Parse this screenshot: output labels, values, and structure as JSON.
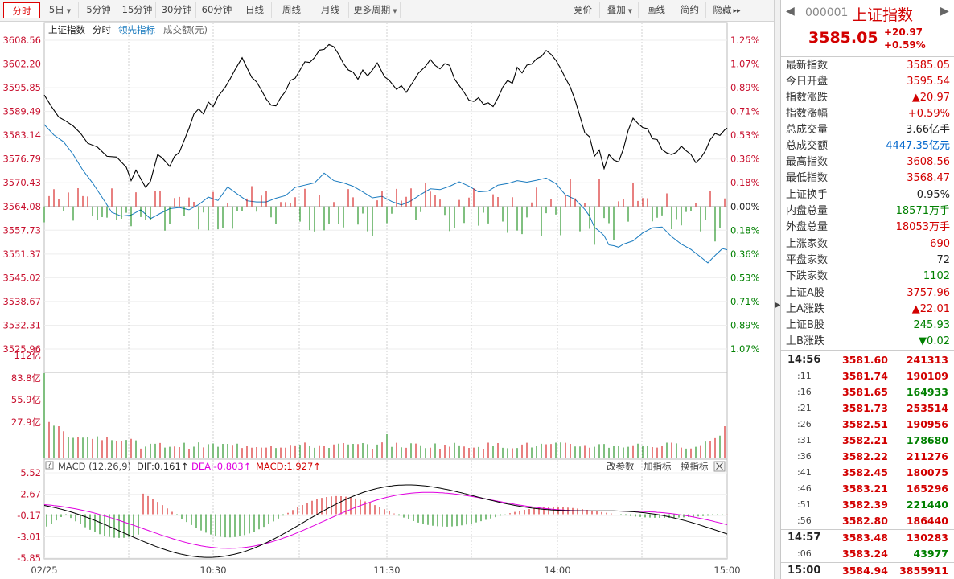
{
  "toolbar": {
    "left": [
      {
        "label": "分时",
        "dropdown": false,
        "active": true
      },
      {
        "label": "5日",
        "dropdown": true
      },
      {
        "label": "5分钟",
        "dropdown": false
      },
      {
        "label": "15分钟",
        "dropdown": false
      },
      {
        "label": "30分钟",
        "dropdown": false
      },
      {
        "label": "60分钟",
        "dropdown": false
      },
      {
        "label": "日线",
        "dropdown": false
      },
      {
        "label": "周线",
        "dropdown": false
      },
      {
        "label": "月线",
        "dropdown": false
      },
      {
        "label": "更多周期",
        "dropdown": true
      }
    ],
    "right": [
      {
        "label": "竞价",
        "dropdown": false
      },
      {
        "label": "叠加",
        "dropdown": true
      },
      {
        "label": "画线",
        "dropdown": false
      },
      {
        "label": "简约",
        "dropdown": false
      },
      {
        "label": "隐藏",
        "dropdown": false,
        "suffix": "▸▸"
      }
    ]
  },
  "legend": {
    "name": "上证指数",
    "mode": "分时",
    "leading": "领先指标",
    "amount": "成交额(元)"
  },
  "price_axis": [
    "3608.56",
    "3602.20",
    "3595.85",
    "3589.49",
    "3583.14",
    "3576.79",
    "3570.43",
    "3564.08",
    "3557.73",
    "3551.37",
    "3545.02",
    "3538.67",
    "3532.31",
    "3525.96"
  ],
  "pct_axis": [
    "1.25%",
    "1.07%",
    "0.89%",
    "0.71%",
    "0.53%",
    "0.36%",
    "0.18%",
    "0.00%",
    "0.18%",
    "0.36%",
    "0.53%",
    "0.71%",
    "0.89%",
    "1.07%"
  ],
  "volume_axis": [
    "112亿",
    "83.8亿",
    "55.9亿",
    "27.9亿"
  ],
  "macd": {
    "title": "MACD (12,26,9)",
    "dif": "DIF:0.161↑",
    "dea": "DEA:-0.803↑",
    "macd": "MACD:1.927↑",
    "btn_params": "改参数",
    "btn_add": "加指标",
    "btn_swap": "换指标",
    "close": "⨉"
  },
  "macd_axis": [
    "5.52",
    "2.67",
    "-0.17",
    "-3.01",
    "-5.85"
  ],
  "time_axis": [
    "02/25",
    "10:30",
    "11:30",
    "14:00",
    "15:00"
  ],
  "colors": {
    "up": "#d20000",
    "down": "#008000",
    "price_line": "#000000",
    "avg_line": "#1a7bbf",
    "dea_line": "#e000e0",
    "macd_label": "#d20000"
  },
  "chart_data": {
    "type": "line",
    "title": "上证指数 分时",
    "prev_close": 3564.08,
    "price_range": [
      3525.96,
      3608.56
    ],
    "price_series": [
      [
        0,
        3593.9
      ],
      [
        3,
        3590.8
      ],
      [
        6,
        3588.0
      ],
      [
        9,
        3586.9
      ],
      [
        12,
        3585.6
      ],
      [
        15,
        3583.7
      ],
      [
        18,
        3581.0
      ],
      [
        22,
        3580.0
      ],
      [
        26,
        3577.5
      ],
      [
        30,
        3577.3
      ],
      [
        34,
        3574.6
      ],
      [
        36,
        3571.0
      ],
      [
        38,
        3573.8
      ],
      [
        40,
        3571.5
      ],
      [
        42,
        3569.2
      ],
      [
        44,
        3570.8
      ],
      [
        47,
        3578.0
      ],
      [
        49,
        3577.0
      ],
      [
        52,
        3574.8
      ],
      [
        54,
        3577.5
      ],
      [
        56,
        3578.6
      ],
      [
        58,
        3581.8
      ],
      [
        60,
        3585.0
      ],
      [
        62,
        3588.8
      ],
      [
        64,
        3590.2
      ],
      [
        66,
        3588.8
      ],
      [
        68,
        3592.0
      ],
      [
        70,
        3590.8
      ],
      [
        72,
        3593.5
      ],
      [
        75,
        3596.0
      ],
      [
        77,
        3598.2
      ],
      [
        79,
        3600.6
      ],
      [
        81,
        3602.8
      ],
      [
        82,
        3603.9
      ],
      [
        84,
        3601.2
      ],
      [
        86,
        3598.6
      ],
      [
        88,
        3597.4
      ],
      [
        90,
        3595.2
      ],
      [
        92,
        3592.8
      ],
      [
        94,
        3591.2
      ],
      [
        96,
        3591.0
      ],
      [
        98,
        3593.2
      ],
      [
        100,
        3594.9
      ],
      [
        102,
        3597.8
      ],
      [
        104,
        3598.4
      ],
      [
        106,
        3600.6
      ],
      [
        108,
        3602.8
      ],
      [
        110,
        3602.6
      ],
      [
        112,
        3603.9
      ],
      [
        114,
        3605.9
      ],
      [
        116,
        3606.1
      ],
      [
        118,
        3607.4
      ],
      [
        120,
        3606.8
      ],
      [
        122,
        3604.8
      ],
      [
        124,
        3602.3
      ],
      [
        126,
        3600.6
      ],
      [
        128,
        3600.0
      ],
      [
        130,
        3598.1
      ],
      [
        132,
        3600.6
      ],
      [
        134,
        3599.0
      ],
      [
        136,
        3600.6
      ],
      [
        138,
        3602.5
      ],
      [
        141,
        3598.8
      ],
      [
        143,
        3597.8
      ],
      [
        146,
        3595.4
      ],
      [
        148,
        3596.4
      ],
      [
        150,
        3594.6
      ],
      [
        153,
        3597.6
      ],
      [
        155,
        3599.7
      ],
      [
        158,
        3601.6
      ],
      [
        160,
        3603.4
      ],
      [
        162,
        3601.8
      ],
      [
        164,
        3600.9
      ],
      [
        166,
        3602.3
      ],
      [
        168,
        3601.8
      ],
      [
        170,
        3598.2
      ],
      [
        172,
        3596.4
      ],
      [
        174,
        3594.6
      ],
      [
        176,
        3592.5
      ],
      [
        178,
        3592.2
      ],
      [
        180,
        3593.2
      ],
      [
        182,
        3591.4
      ],
      [
        184,
        3591.8
      ],
      [
        186,
        3590.8
      ],
      [
        188,
        3593.1
      ],
      [
        190,
        3596.0
      ],
      [
        192,
        3597.8
      ],
      [
        194,
        3597.0
      ],
      [
        196,
        3601.3
      ],
      [
        198,
        3599.8
      ],
      [
        200,
        3601.9
      ],
      [
        202,
        3602.2
      ],
      [
        204,
        3603.6
      ],
      [
        206,
        3604.2
      ],
      [
        208,
        3605.8
      ],
      [
        210,
        3604.8
      ],
      [
        212,
        3603.2
      ],
      [
        214,
        3601.0
      ],
      [
        216,
        3598.4
      ],
      [
        218,
        3596.0
      ],
      [
        220,
        3592.5
      ],
      [
        222,
        3588.2
      ],
      [
        224,
        3583.8
      ],
      [
        226,
        3582.7
      ],
      [
        228,
        3577.5
      ],
      [
        230,
        3579.2
      ],
      [
        232,
        3574.2
      ],
      [
        234,
        3578.0
      ],
      [
        236,
        3576.5
      ],
      [
        238,
        3576.0
      ],
      [
        240,
        3579.5
      ],
      [
        242,
        3584.5
      ],
      [
        244,
        3587.7
      ],
      [
        246,
        3586.3
      ],
      [
        248,
        3585.2
      ],
      [
        250,
        3584.9
      ],
      [
        252,
        3582.2
      ],
      [
        254,
        3582.0
      ],
      [
        256,
        3579.3
      ],
      [
        258,
        3578.4
      ],
      [
        260,
        3578.0
      ],
      [
        262,
        3578.6
      ],
      [
        264,
        3580.2
      ],
      [
        266,
        3579.0
      ],
      [
        268,
        3578.0
      ],
      [
        270,
        3575.8
      ],
      [
        272,
        3577.0
      ],
      [
        274,
        3579.0
      ],
      [
        276,
        3582.0
      ],
      [
        278,
        3583.6
      ],
      [
        280,
        3583.1
      ],
      [
        282,
        3584.6
      ],
      [
        283,
        3585.05
      ]
    ],
    "avg_series": [
      [
        0,
        3586.0
      ],
      [
        4,
        3583.2
      ],
      [
        8,
        3581.4
      ],
      [
        12,
        3578.0
      ],
      [
        16,
        3573.8
      ],
      [
        20,
        3570.4
      ],
      [
        24,
        3566.5
      ],
      [
        28,
        3562.5
      ],
      [
        32,
        3561.5
      ],
      [
        36,
        3561.8
      ],
      [
        40,
        3563.2
      ],
      [
        44,
        3560.8
      ],
      [
        48,
        3562.2
      ],
      [
        52,
        3563.5
      ],
      [
        56,
        3563.8
      ],
      [
        60,
        3563.2
      ],
      [
        64,
        3564.6
      ],
      [
        68,
        3566.6
      ],
      [
        72,
        3565.7
      ],
      [
        76,
        3569.3
      ],
      [
        80,
        3567.4
      ],
      [
        84,
        3565.6
      ],
      [
        88,
        3565.3
      ],
      [
        92,
        3565.3
      ],
      [
        96,
        3566.3
      ],
      [
        100,
        3567.0
      ],
      [
        104,
        3569.2
      ],
      [
        108,
        3569.8
      ],
      [
        112,
        3570.4
      ],
      [
        116,
        3573.0
      ],
      [
        120,
        3571.0
      ],
      [
        124,
        3570.4
      ],
      [
        128,
        3569.5
      ],
      [
        132,
        3568.0
      ],
      [
        136,
        3566.4
      ],
      [
        140,
        3566.8
      ],
      [
        144,
        3565.4
      ],
      [
        148,
        3564.5
      ],
      [
        152,
        3565.6
      ],
      [
        156,
        3567.3
      ],
      [
        160,
        3568.8
      ],
      [
        164,
        3568.6
      ],
      [
        168,
        3569.5
      ],
      [
        172,
        3570.7
      ],
      [
        176,
        3569.5
      ],
      [
        180,
        3568.0
      ],
      [
        184,
        3568.2
      ],
      [
        188,
        3569.8
      ],
      [
        192,
        3570.2
      ],
      [
        196,
        3571.0
      ],
      [
        200,
        3570.6
      ],
      [
        204,
        3571.1
      ],
      [
        208,
        3571.7
      ],
      [
        212,
        3570.2
      ],
      [
        216,
        3567.2
      ],
      [
        220,
        3566.0
      ],
      [
        224,
        3563.3
      ],
      [
        226,
        3561.5
      ],
      [
        228,
        3558.5
      ],
      [
        230,
        3557.5
      ],
      [
        232,
        3556.3
      ],
      [
        234,
        3553.8
      ],
      [
        236,
        3553.6
      ],
      [
        238,
        3553.2
      ],
      [
        240,
        3554.0
      ],
      [
        244,
        3554.9
      ],
      [
        248,
        3557.0
      ],
      [
        252,
        3558.4
      ],
      [
        256,
        3558.6
      ],
      [
        260,
        3556.0
      ],
      [
        264,
        3554.0
      ],
      [
        268,
        3552.6
      ],
      [
        272,
        3550.6
      ],
      [
        275,
        3549.0
      ],
      [
        278,
        3551.0
      ],
      [
        281,
        3552.8
      ],
      [
        283,
        3552.5
      ]
    ],
    "volume_range": [
      0,
      112
    ],
    "macd_range": [
      -5.85,
      5.52
    ]
  },
  "panel": {
    "code": "000001",
    "name": "上证指数",
    "price": "3585.05",
    "change": "+20.97",
    "pct": "+0.59%",
    "nav_prev": "◀",
    "nav_next": "▶",
    "group1": [
      {
        "k": "最新指数",
        "v": "3585.05",
        "c": "red"
      },
      {
        "k": "今日开盘",
        "v": "3595.54",
        "c": "red"
      },
      {
        "k": "指数涨跌",
        "v": "▲20.97",
        "c": "red"
      },
      {
        "k": "指数涨幅",
        "v": "+0.59%",
        "c": "red"
      },
      {
        "k": "总成交量",
        "v": "3.66亿手",
        "c": "black"
      },
      {
        "k": "总成交额",
        "v": "4447.35亿元",
        "c": "blue"
      },
      {
        "k": "最高指数",
        "v": "3608.56",
        "c": "red"
      },
      {
        "k": "最低指数",
        "v": "3568.47",
        "c": "red"
      }
    ],
    "group2": [
      {
        "k": "上证换手",
        "v": "0.95%",
        "c": "black"
      },
      {
        "k": "内盘总量",
        "v": "18571万手",
        "c": "green"
      },
      {
        "k": "外盘总量",
        "v": "18053万手",
        "c": "red"
      }
    ],
    "group3": [
      {
        "k": "上涨家数",
        "v": "690",
        "c": "red"
      },
      {
        "k": "平盘家数",
        "v": "72",
        "c": "black"
      },
      {
        "k": "下跌家数",
        "v": "1102",
        "c": "green"
      }
    ],
    "group4": [
      {
        "k": "上证A股",
        "v": "3757.96",
        "c": "red"
      },
      {
        "k": "上A涨跌",
        "v": "▲22.01",
        "c": "red"
      },
      {
        "k": "上证B股",
        "v": "245.93",
        "c": "green"
      },
      {
        "k": "上B涨跌",
        "v": "▼0.02",
        "c": "green"
      }
    ],
    "ticks": [
      {
        "t": "14:56",
        "p": "3581.60",
        "v": "241313",
        "pc": "red",
        "vc": "red",
        "bold": true
      },
      {
        "t": ":11",
        "p": "3581.74",
        "v": "190109",
        "pc": "red",
        "vc": "red"
      },
      {
        "t": ":16",
        "p": "3581.65",
        "v": "164933",
        "pc": "red",
        "vc": "green"
      },
      {
        "t": ":21",
        "p": "3581.73",
        "v": "253514",
        "pc": "red",
        "vc": "red"
      },
      {
        "t": ":26",
        "p": "3582.51",
        "v": "190956",
        "pc": "red",
        "vc": "red"
      },
      {
        "t": ":31",
        "p": "3582.21",
        "v": "178680",
        "pc": "red",
        "vc": "green"
      },
      {
        "t": ":36",
        "p": "3582.22",
        "v": "211276",
        "pc": "red",
        "vc": "red"
      },
      {
        "t": ":41",
        "p": "3582.45",
        "v": "180075",
        "pc": "red",
        "vc": "red"
      },
      {
        "t": ":46",
        "p": "3583.21",
        "v": "165296",
        "pc": "red",
        "vc": "red"
      },
      {
        "t": ":51",
        "p": "3582.39",
        "v": "221440",
        "pc": "red",
        "vc": "green"
      },
      {
        "t": ":56",
        "p": "3582.80",
        "v": "186440",
        "pc": "red",
        "vc": "red"
      },
      {
        "t": "14:57",
        "p": "3583.48",
        "v": "130283",
        "pc": "red",
        "vc": "red",
        "bold": true
      },
      {
        "t": ":06",
        "p": "3583.24",
        "v": "43977",
        "pc": "red",
        "vc": "green"
      },
      {
        "t": "15:00",
        "p": "3584.94",
        "v": "3855911",
        "pc": "red",
        "vc": "red",
        "bold": true
      }
    ]
  }
}
